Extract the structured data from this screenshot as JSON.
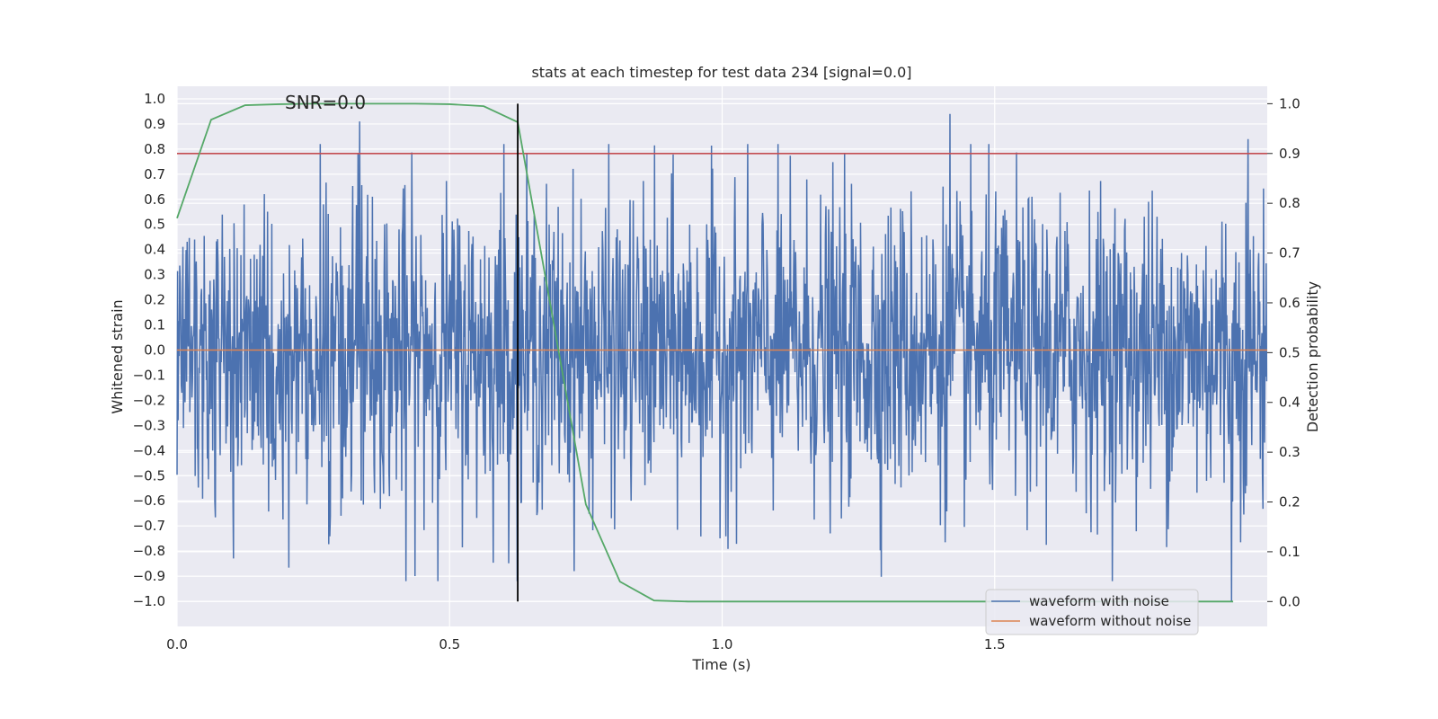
{
  "chart_data": {
    "type": "line",
    "title": "stats at each timestep for test data 234 [signal=0.0]",
    "xlabel": "Time (s)",
    "ylabel_left": "Whitened strain",
    "ylabel_right": "Detection probability",
    "annotation": "SNR=0.0",
    "xlim": [
      0.0,
      2.0
    ],
    "ylim_left": [
      -1.1,
      1.05
    ],
    "ylim_right": [
      -0.05,
      1.035
    ],
    "x_ticks": [
      0.0,
      0.5,
      1.0,
      1.5
    ],
    "x_tick_labels": [
      "0.0",
      "0.5",
      "1.0",
      "1.5"
    ],
    "y_left_ticks": [
      1.0,
      0.9,
      0.8,
      0.7,
      0.6,
      0.5,
      0.4,
      0.3,
      0.2,
      0.1,
      0.0,
      -0.1,
      -0.2,
      -0.3,
      -0.4,
      -0.5,
      -0.6,
      -0.7,
      -0.8,
      -0.9,
      -1.0
    ],
    "y_left_tick_labels": [
      "1.0",
      "0.9",
      "0.8",
      "0.7",
      "0.6",
      "0.5",
      "0.4",
      "0.3",
      "0.2",
      "0.1",
      "0.0",
      "−0.1",
      "−0.2",
      "−0.3",
      "−0.4",
      "−0.5",
      "−0.6",
      "−0.7",
      "−0.8",
      "−0.9",
      "−1.0"
    ],
    "y_right_ticks": [
      1.0,
      0.9,
      0.8,
      0.7,
      0.6,
      0.5,
      0.4,
      0.3,
      0.2,
      0.1,
      0.0
    ],
    "y_right_tick_labels": [
      "1.0",
      "0.9",
      "0.8",
      "0.7",
      "0.6",
      "0.5",
      "0.4",
      "0.3",
      "0.2",
      "0.1",
      "0.0"
    ],
    "series": [
      {
        "name": "waveform with noise",
        "axis": "left",
        "color": "#4c72b0",
        "sample_count": 2048,
        "x_range": [
          0.0,
          1.999
        ],
        "approx_std": 0.3,
        "value_range": [
          -1.0,
          0.94
        ],
        "notable_peaks": [
          {
            "x": 0.335,
            "y": 0.91
          },
          {
            "x": 0.42,
            "y": -0.92
          },
          {
            "x": 0.6,
            "y": 0.82
          },
          {
            "x": 1.418,
            "y": 0.94
          },
          {
            "x": 1.935,
            "y": -1.0
          },
          {
            "x": 1.965,
            "y": 0.84
          }
        ]
      },
      {
        "name": "waveform without noise",
        "axis": "left",
        "color": "#dd8452",
        "x": [
          0.0,
          2.0
        ],
        "y": [
          0.0,
          0.0
        ]
      },
      {
        "name": "detection probability",
        "axis": "right",
        "color": "#55a868",
        "x": [
          0.0,
          0.0625,
          0.125,
          0.1875,
          0.25,
          0.3125,
          0.375,
          0.4375,
          0.5,
          0.5625,
          0.625,
          0.6875,
          0.75,
          0.8125,
          0.875,
          0.9375,
          1.0,
          1.0625,
          1.125,
          1.1875,
          1.25,
          1.3125,
          1.375,
          1.4375,
          1.5,
          1.5625,
          1.625,
          1.6875,
          1.75,
          1.8125,
          1.875,
          1.9375
        ],
        "y": [
          0.77,
          0.968,
          0.997,
          0.999,
          1.0,
          1.0,
          1.0,
          1.0,
          0.999,
          0.995,
          0.963,
          0.58,
          0.195,
          0.04,
          0.002,
          0.0,
          0.0,
          0.0,
          0.0,
          0.0,
          0.0,
          0.0,
          0.0,
          0.0,
          0.0,
          0.0,
          0.0,
          0.0,
          0.0,
          0.0,
          0.0,
          0.0
        ]
      },
      {
        "name": "threshold",
        "axis": "right",
        "color": "#c44e52",
        "y": 0.9
      },
      {
        "name": "detection time",
        "axis": "right",
        "color": "#000000",
        "x": 0.625,
        "y_range": [
          0.0,
          1.0
        ]
      }
    ],
    "legend": {
      "placement": "lower-right",
      "entries": [
        {
          "label": "waveform with noise",
          "color": "#4c72b0"
        },
        {
          "label": "waveform without noise",
          "color": "#dd8452"
        }
      ]
    },
    "grid": true,
    "background_color": "#eaeaf2",
    "grid_color": "#ffffff"
  }
}
